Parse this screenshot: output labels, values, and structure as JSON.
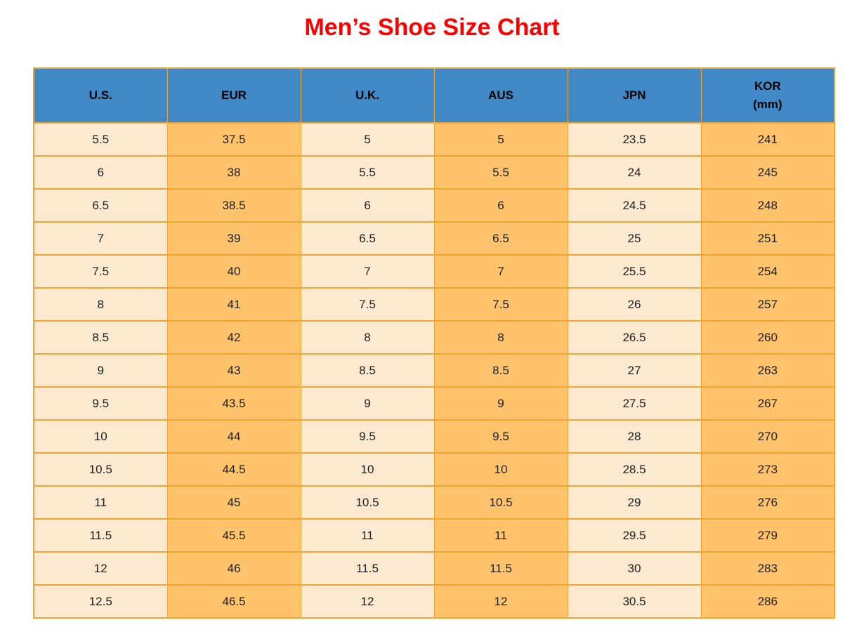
{
  "title": "Men’s Shoe Size Chart",
  "colors": {
    "title_color": "#FF0000",
    "header_bg": "#4189C6",
    "header_text": "#000000",
    "col_light": "#FDE9D0",
    "col_orange": "#FEC36B",
    "border": "#F0A432",
    "body_text": "#1E1E1E",
    "page_bg": "#FFFFFF"
  },
  "chart_data": {
    "type": "table",
    "title": "Men’s Shoe Size Chart",
    "columns": [
      {
        "label": "U.S.",
        "sublabel": ""
      },
      {
        "label": "EUR",
        "sublabel": ""
      },
      {
        "label": "U.K.",
        "sublabel": ""
      },
      {
        "label": "AUS",
        "sublabel": ""
      },
      {
        "label": "JPN",
        "sublabel": ""
      },
      {
        "label": "KOR",
        "sublabel": "(mm)"
      }
    ],
    "rows": [
      [
        "5.5",
        "37.5",
        "5",
        "5",
        "23.5",
        "241"
      ],
      [
        "6",
        "38",
        "5.5",
        "5.5",
        "24",
        "245"
      ],
      [
        "6.5",
        "38.5",
        "6",
        "6",
        "24.5",
        "248"
      ],
      [
        "7",
        "39",
        "6.5",
        "6.5",
        "25",
        "251"
      ],
      [
        "7.5",
        "40",
        "7",
        "7",
        "25.5",
        "254"
      ],
      [
        "8",
        "41",
        "7.5",
        "7.5",
        "26",
        "257"
      ],
      [
        "8.5",
        "42",
        "8",
        "8",
        "26.5",
        "260"
      ],
      [
        "9",
        "43",
        "8.5",
        "8.5",
        "27",
        "263"
      ],
      [
        "9.5",
        "43.5",
        "9",
        "9",
        "27.5",
        "267"
      ],
      [
        "10",
        "44",
        "9.5",
        "9.5",
        "28",
        "270"
      ],
      [
        "10.5",
        "44.5",
        "10",
        "10",
        "28.5",
        "273"
      ],
      [
        "11",
        "45",
        "10.5",
        "10.5",
        "29",
        "276"
      ],
      [
        "11.5",
        "45.5",
        "11",
        "11",
        "29.5",
        "279"
      ],
      [
        "12",
        "46",
        "11.5",
        "11.5",
        "30",
        "283"
      ],
      [
        "12.5",
        "46.5",
        "12",
        "12",
        "30.5",
        "286"
      ]
    ],
    "layout": {
      "column_fill_pattern": [
        "light",
        "orange",
        "light",
        "orange",
        "light",
        "orange"
      ],
      "grid": true,
      "header_position": "top"
    }
  }
}
